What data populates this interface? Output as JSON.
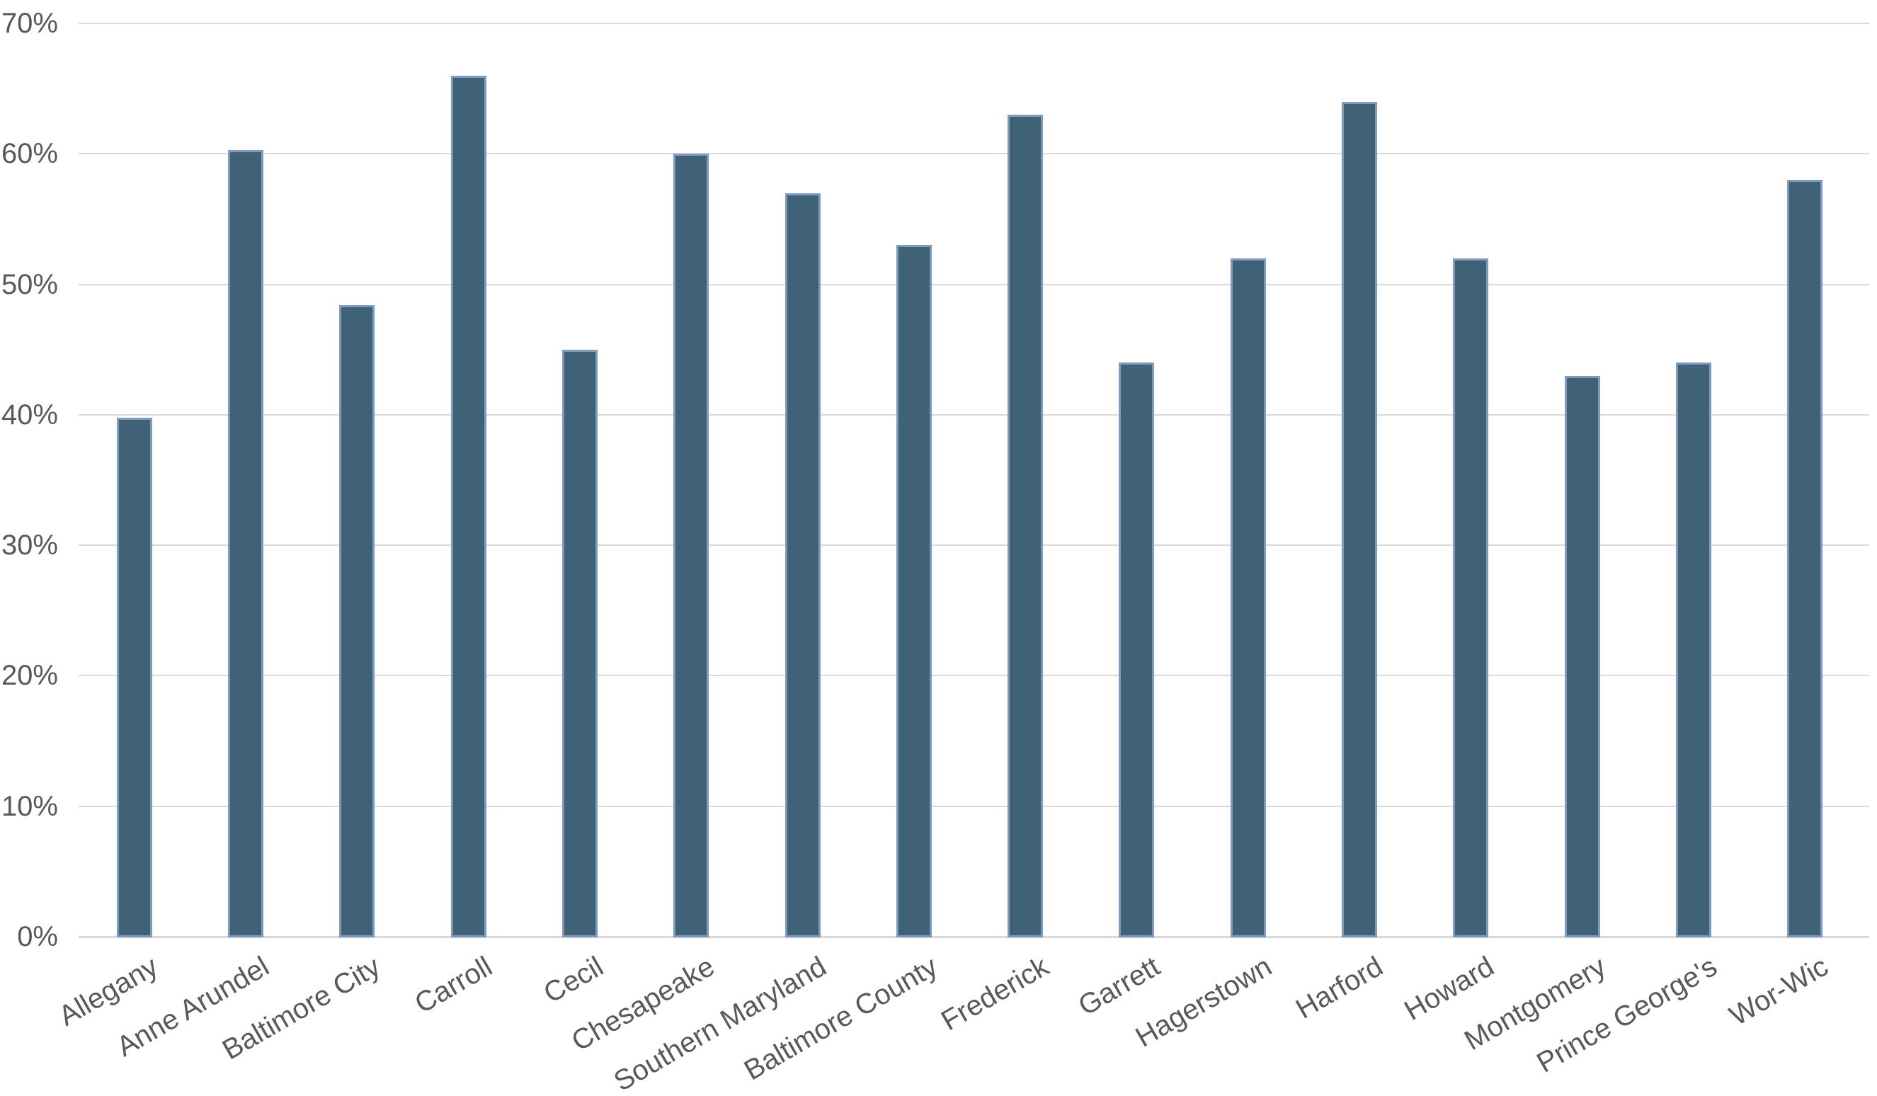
{
  "chart_data": {
    "type": "bar",
    "title": "",
    "xlabel": "",
    "ylabel": "",
    "categories": [
      "Allegany",
      "Anne Arundel",
      "Baltimore City",
      "Carroll",
      "Cecil",
      "Chesapeake",
      "Southern Maryland",
      "Baltimore County",
      "Frederick",
      "Garrett",
      "Hagerstown",
      "Harford",
      "Howard",
      "Montgomery",
      "Prince George's",
      "Wor-Wic"
    ],
    "values": [
      39.8,
      60.3,
      48.4,
      66,
      45,
      60,
      57,
      53,
      63,
      44,
      52,
      64,
      52,
      43,
      44,
      58
    ],
    "value_unit": "%",
    "ylim": [
      0,
      70
    ],
    "ytick_step": 10,
    "ytick_labels": [
      "0%",
      "10%",
      "20%",
      "30%",
      "40%",
      "50%",
      "60%",
      "70%"
    ],
    "grid": "horizontal",
    "legend": "none",
    "series_count": 1,
    "colors": {
      "bar_fill": "#3F6276",
      "bar_border": "#7E9BBF",
      "gridline": "#D9D9D9",
      "tick_label": "#595959",
      "background": "#FFFFFF"
    }
  }
}
